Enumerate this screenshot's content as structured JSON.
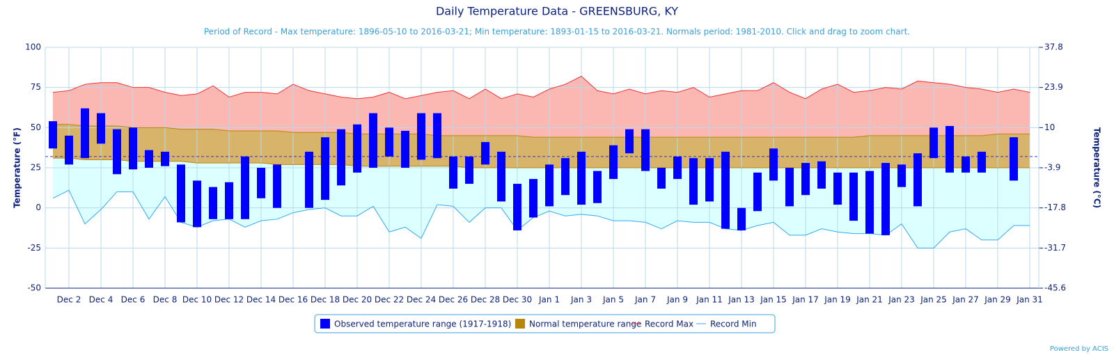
{
  "chart_data": {
    "type": "range",
    "title": "Daily Temperature Data - GREENSBURG, KY",
    "subtitle": "Period of Record - Max temperature: 1896-05-10 to 2016-03-21; Min temperature: 1893-01-15 to 2016-03-21. Normals period: 1981-2010. Click and drag to zoom chart.",
    "y_label": "Temperature (°F)",
    "y2_label": "Temperature (°C)",
    "credits": "Powered by ACIS",
    "categories": [
      null,
      "Dec 2",
      null,
      "Dec 4",
      null,
      "Dec 6",
      null,
      "Dec 8",
      null,
      "Dec 10",
      null,
      "Dec 12",
      null,
      "Dec 14",
      null,
      "Dec 16",
      null,
      "Dec 18",
      null,
      "Dec 20",
      null,
      "Dec 22",
      null,
      "Dec 24",
      null,
      "Dec 26",
      null,
      "Dec 28",
      null,
      "Dec 30",
      null,
      "Jan 1",
      null,
      "Jan 3",
      null,
      "Jan 5",
      null,
      "Jan 7",
      null,
      "Jan 9",
      null,
      "Jan 11",
      null,
      "Jan 13",
      null,
      "Jan 15",
      null,
      "Jan 17",
      null,
      "Jan 19",
      null,
      "Jan 21",
      null,
      "Jan 23",
      null,
      "Jan 25",
      null,
      "Jan 27",
      null,
      "Jan 29",
      null,
      "Jan 31"
    ],
    "ylim": [
      -50,
      100
    ],
    "yticks": [
      -50,
      -25,
      0,
      25,
      50,
      75,
      100
    ],
    "y2lim": [
      -45.6,
      37.8
    ],
    "y2ticks": [
      -45.6,
      -31.7,
      -17.8,
      -3.9,
      10,
      23.9,
      37.8
    ],
    "reference_line": 32,
    "grid": true,
    "series": [
      {
        "name": "Observed temperature range (1917-1918)",
        "kind": "bar",
        "color": "#0000ff",
        "high": [
          54,
          45,
          62,
          59,
          49,
          50,
          36,
          35,
          27,
          17,
          13,
          16,
          32,
          25,
          27,
          null,
          35,
          44,
          49,
          52,
          59,
          50,
          48,
          59,
          59,
          32,
          32,
          41,
          35,
          15,
          18,
          27,
          31,
          35,
          23,
          39,
          49,
          49,
          25,
          32,
          31,
          31,
          35,
          0,
          22,
          37,
          25,
          28,
          29,
          22,
          22,
          23,
          28,
          27,
          34,
          50,
          51,
          32,
          35,
          null,
          44,
          null
        ],
        "low": [
          37,
          27,
          31,
          40,
          21,
          24,
          25,
          26,
          -9,
          -12,
          -7,
          -7,
          -7,
          6,
          0,
          null,
          0,
          5,
          14,
          22,
          25,
          32,
          25,
          30,
          31,
          12,
          15,
          27,
          4,
          -14,
          -6,
          1,
          8,
          2,
          3,
          18,
          34,
          23,
          12,
          18,
          2,
          4,
          -13,
          -14,
          -2,
          17,
          1,
          8,
          12,
          2,
          -8,
          -16,
          -17,
          13,
          1,
          31,
          22,
          22,
          22,
          null,
          17,
          null
        ]
      },
      {
        "name": "Normal temperature range",
        "kind": "area",
        "color": "#b8860b",
        "fill": "#d8b36a",
        "high": [
          52,
          52,
          51,
          51,
          51,
          50,
          50,
          50,
          49,
          49,
          49,
          48,
          48,
          48,
          48,
          47,
          47,
          47,
          47,
          46,
          46,
          46,
          46,
          46,
          45,
          45,
          45,
          45,
          45,
          45,
          44,
          44,
          44,
          44,
          44,
          44,
          44,
          44,
          44,
          44,
          44,
          44,
          44,
          44,
          44,
          44,
          44,
          44,
          44,
          44,
          44,
          45,
          45,
          45,
          45,
          45,
          45,
          45,
          45,
          46,
          46,
          46
        ],
        "low": [
          31,
          31,
          30,
          30,
          30,
          29,
          29,
          29,
          29,
          28,
          28,
          28,
          28,
          28,
          27,
          27,
          27,
          27,
          27,
          26,
          26,
          26,
          26,
          26,
          26,
          26,
          25,
          25,
          25,
          25,
          25,
          25,
          25,
          25,
          25,
          25,
          25,
          25,
          25,
          25,
          25,
          25,
          25,
          25,
          25,
          25,
          25,
          25,
          25,
          25,
          25,
          25,
          25,
          25,
          25,
          25,
          25,
          25,
          25,
          25,
          25,
          25
        ]
      },
      {
        "name": "Record Max",
        "kind": "line",
        "color": "#ee3333",
        "fill": "#fbb8b3",
        "values": [
          72,
          73,
          77,
          78,
          78,
          75,
          75,
          72,
          70,
          71,
          76,
          69,
          72,
          72,
          71,
          77,
          73,
          71,
          69,
          68,
          69,
          72,
          68,
          70,
          72,
          73,
          68,
          74,
          68,
          71,
          69,
          74,
          77,
          82,
          73,
          71,
          74,
          71,
          73,
          72,
          75,
          69,
          71,
          73,
          73,
          78,
          72,
          68,
          74,
          77,
          72,
          73,
          75,
          74,
          79,
          78,
          77,
          75,
          74,
          72,
          74,
          72
        ]
      },
      {
        "name": "Record Min",
        "kind": "line",
        "color": "#33aaee",
        "fill": "#dcffff",
        "values": [
          6,
          11,
          -10,
          -1,
          10,
          10,
          -7,
          7,
          -9,
          -12,
          -8,
          -7,
          -12,
          -8,
          -7,
          -3,
          -1,
          0,
          -5,
          -5,
          1,
          -15,
          -12,
          -19,
          2,
          1,
          -9,
          0,
          0,
          -14,
          -6,
          -2,
          -5,
          -4,
          -5,
          -8,
          -8,
          -9,
          -13,
          -8,
          -9,
          -9,
          -13,
          -14,
          -11,
          -9,
          -17,
          -17,
          -13,
          -15,
          -16,
          -16,
          -17,
          -10,
          -25,
          -25,
          -15,
          -13,
          -20,
          -20,
          -11,
          -11
        ]
      }
    ]
  }
}
